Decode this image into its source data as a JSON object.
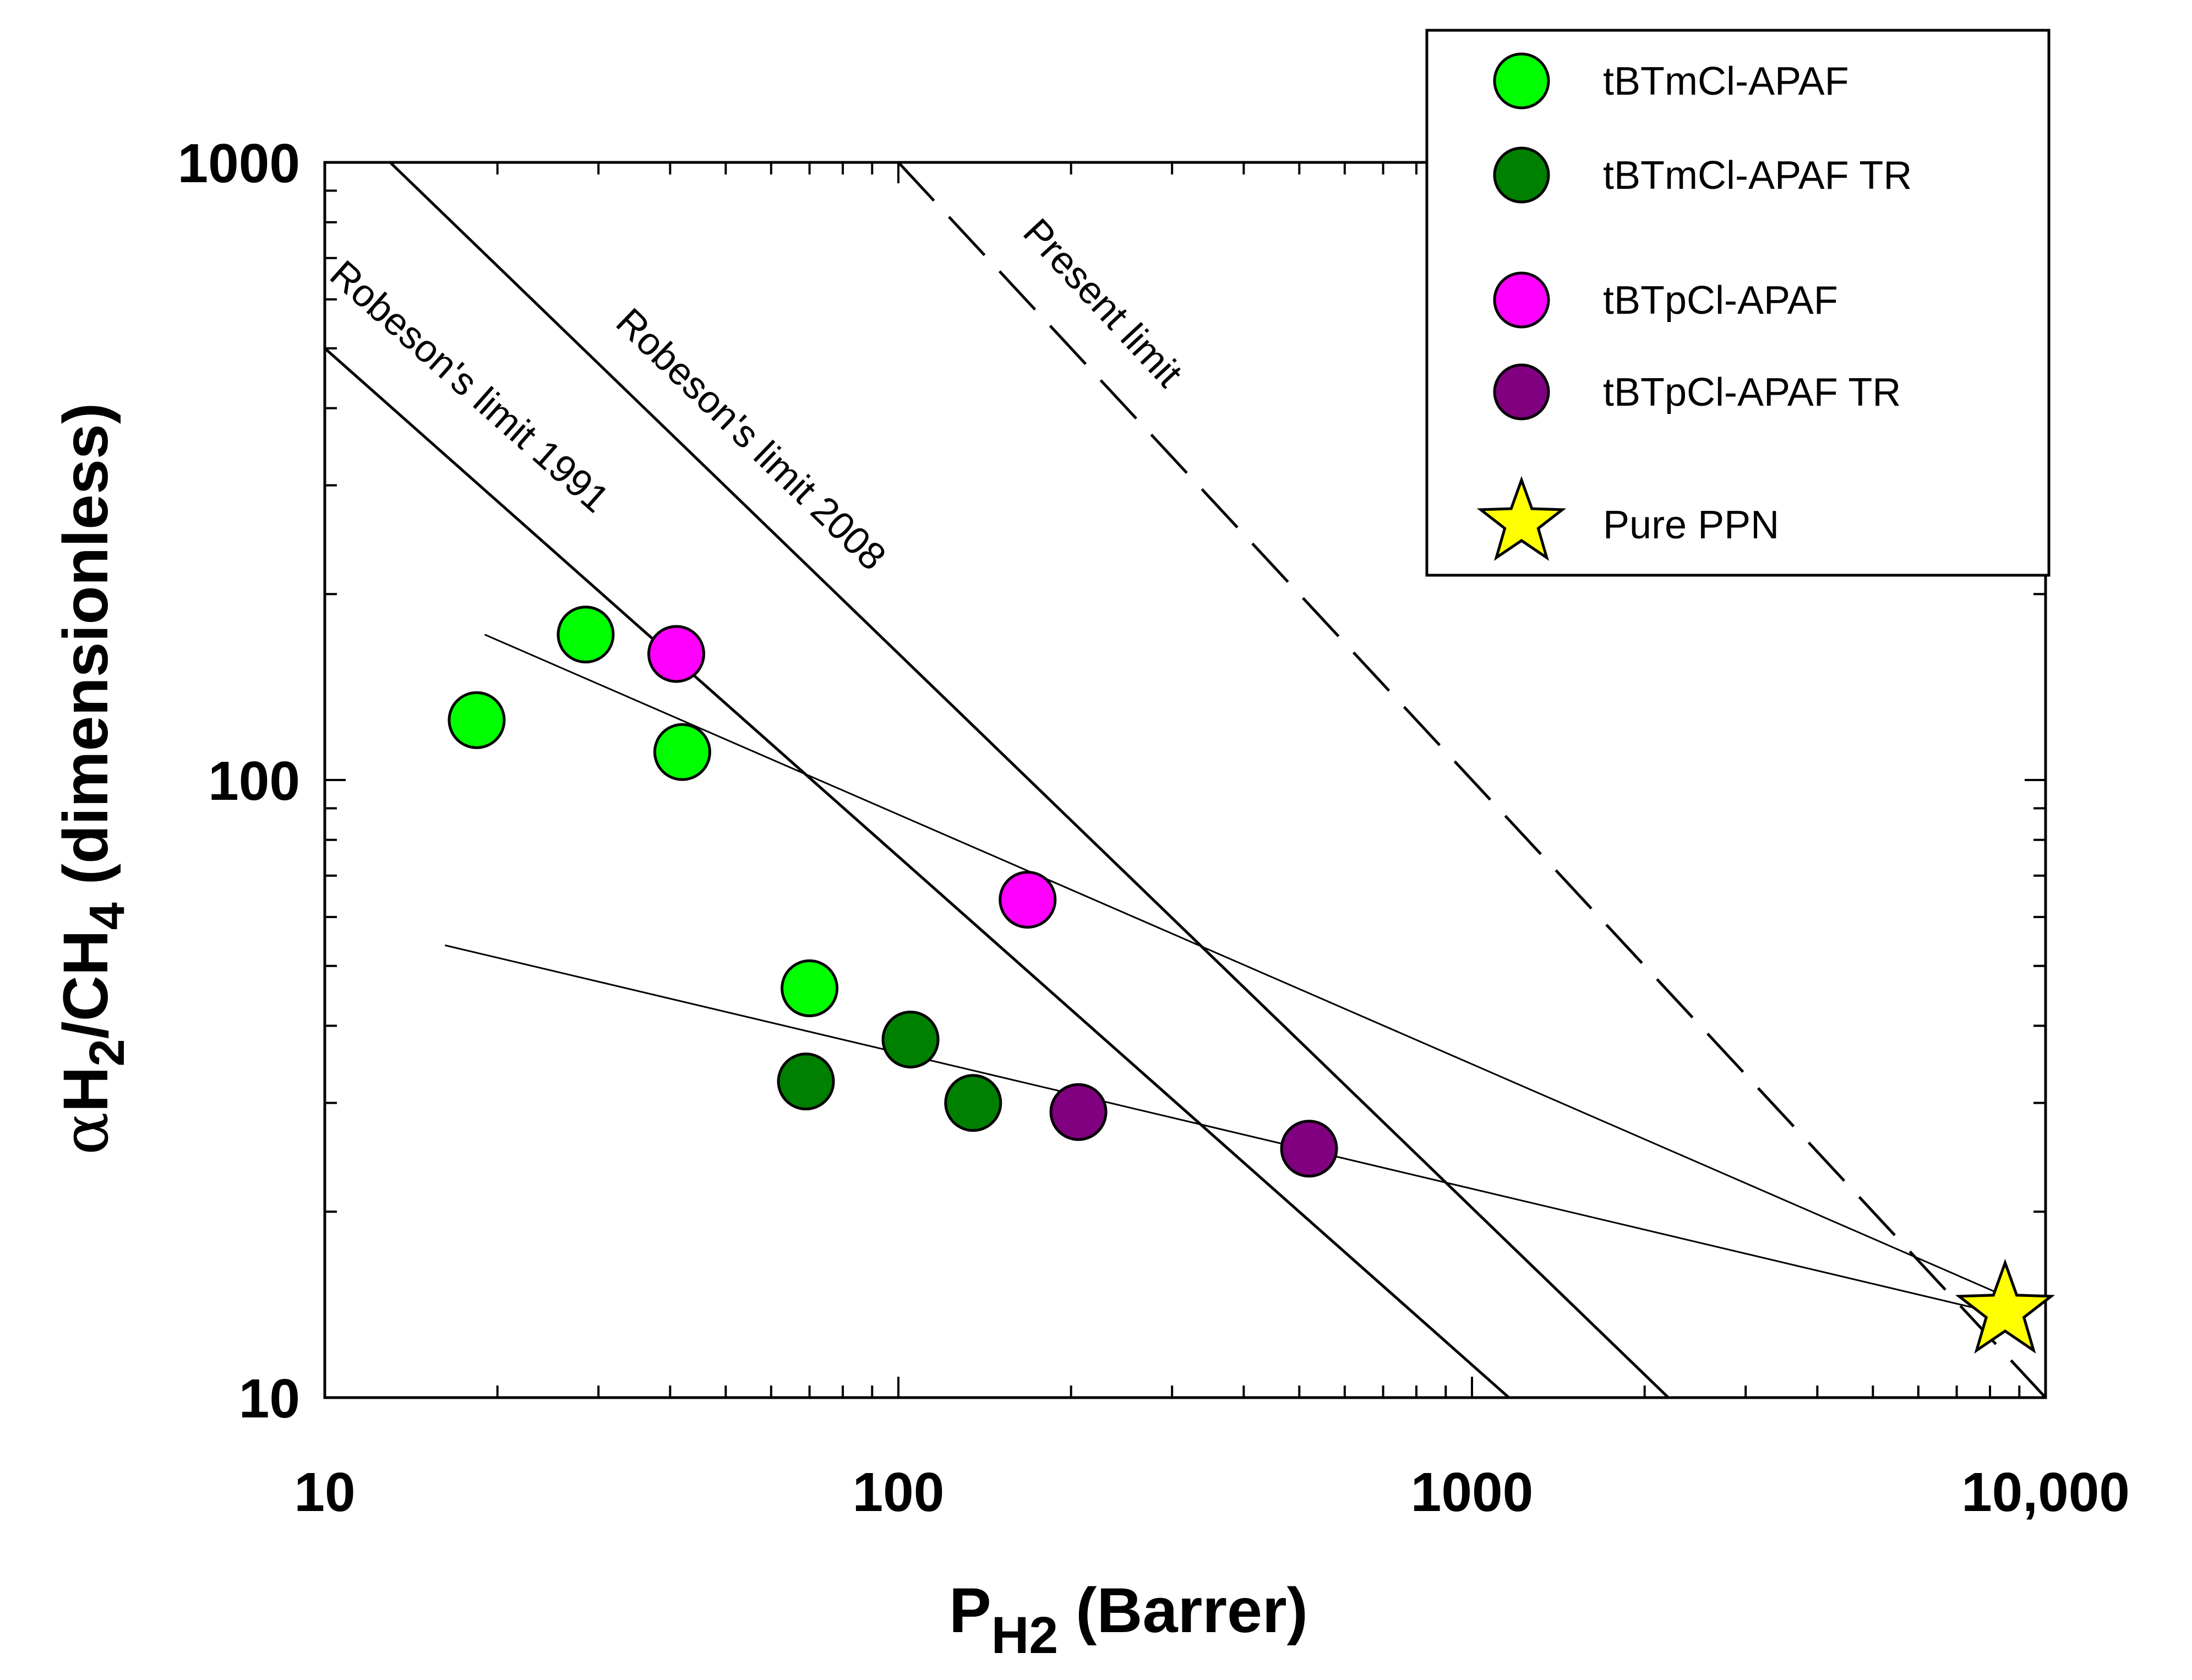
{
  "chart_data": {
    "type": "scatter",
    "x_scale": "log",
    "y_scale": "log",
    "xlim": [
      10,
      10000
    ],
    "ylim": [
      10,
      1000
    ],
    "xlabel": {
      "main": "P",
      "sub": "H2",
      "suffix": " (Barrer)"
    },
    "ylabel": {
      "alpha": "α",
      "h": "H",
      "sub1": "2",
      "mid": "/CH",
      "sub2": "4",
      "suffix": " (dimensionless)"
    },
    "x_ticks": [
      {
        "value": 10,
        "label": "10"
      },
      {
        "value": 100,
        "label": "100"
      },
      {
        "value": 1000,
        "label": "1000"
      },
      {
        "value": 10000,
        "label": "10,000"
      }
    ],
    "y_ticks": [
      {
        "value": 10,
        "label": "10"
      },
      {
        "value": 100,
        "label": "100"
      },
      {
        "value": 1000,
        "label": "1000"
      }
    ],
    "series": [
      {
        "name": "tBTmCl-APAF",
        "marker": "circle",
        "color": "#00ff00",
        "points": [
          [
            18.4,
            125
          ],
          [
            28.5,
            172
          ],
          [
            42,
            111
          ],
          [
            70,
            46
          ]
        ]
      },
      {
        "name": "tBTmCl-APAF TR",
        "marker": "circle",
        "color": "#008000",
        "points": [
          [
            69,
            32.5
          ],
          [
            105,
            38
          ],
          [
            135,
            30
          ]
        ]
      },
      {
        "name": "tBTpCl-APAF",
        "marker": "circle",
        "color": "#ff00ff",
        "points": [
          [
            41,
            160
          ],
          [
            168,
            64
          ]
        ]
      },
      {
        "name": "tBTpCl-APAF TR",
        "marker": "circle",
        "color": "#800080",
        "points": [
          [
            206,
            29
          ],
          [
            520,
            25.3
          ]
        ]
      },
      {
        "name": "Pure PPN",
        "marker": "star",
        "color": "#ffff00",
        "points": [
          [
            8500,
            13.8
          ]
        ]
      }
    ],
    "reference_lines": [
      {
        "label": "Robeson's limit 1991",
        "style": "solid",
        "points": [
          [
            10,
            500
          ],
          [
            1160,
            10
          ]
        ]
      },
      {
        "label": "Robeson's limit 2008",
        "style": "solid",
        "points": [
          [
            13,
            1000
          ],
          [
            2200,
            10
          ]
        ]
      },
      {
        "label": "Present limit",
        "style": "dashed",
        "points": [
          [
            100,
            1000
          ],
          [
            10000,
            10
          ]
        ]
      }
    ],
    "trend_lines": [
      {
        "points": [
          [
            19,
            172
          ],
          [
            8500,
            14.6
          ]
        ]
      },
      {
        "points": [
          [
            16.2,
            54
          ],
          [
            8500,
            13.6
          ]
        ]
      }
    ],
    "legend": {
      "position": "top-right"
    }
  },
  "colors": {
    "axis": "#000000",
    "background": "#ffffff"
  }
}
